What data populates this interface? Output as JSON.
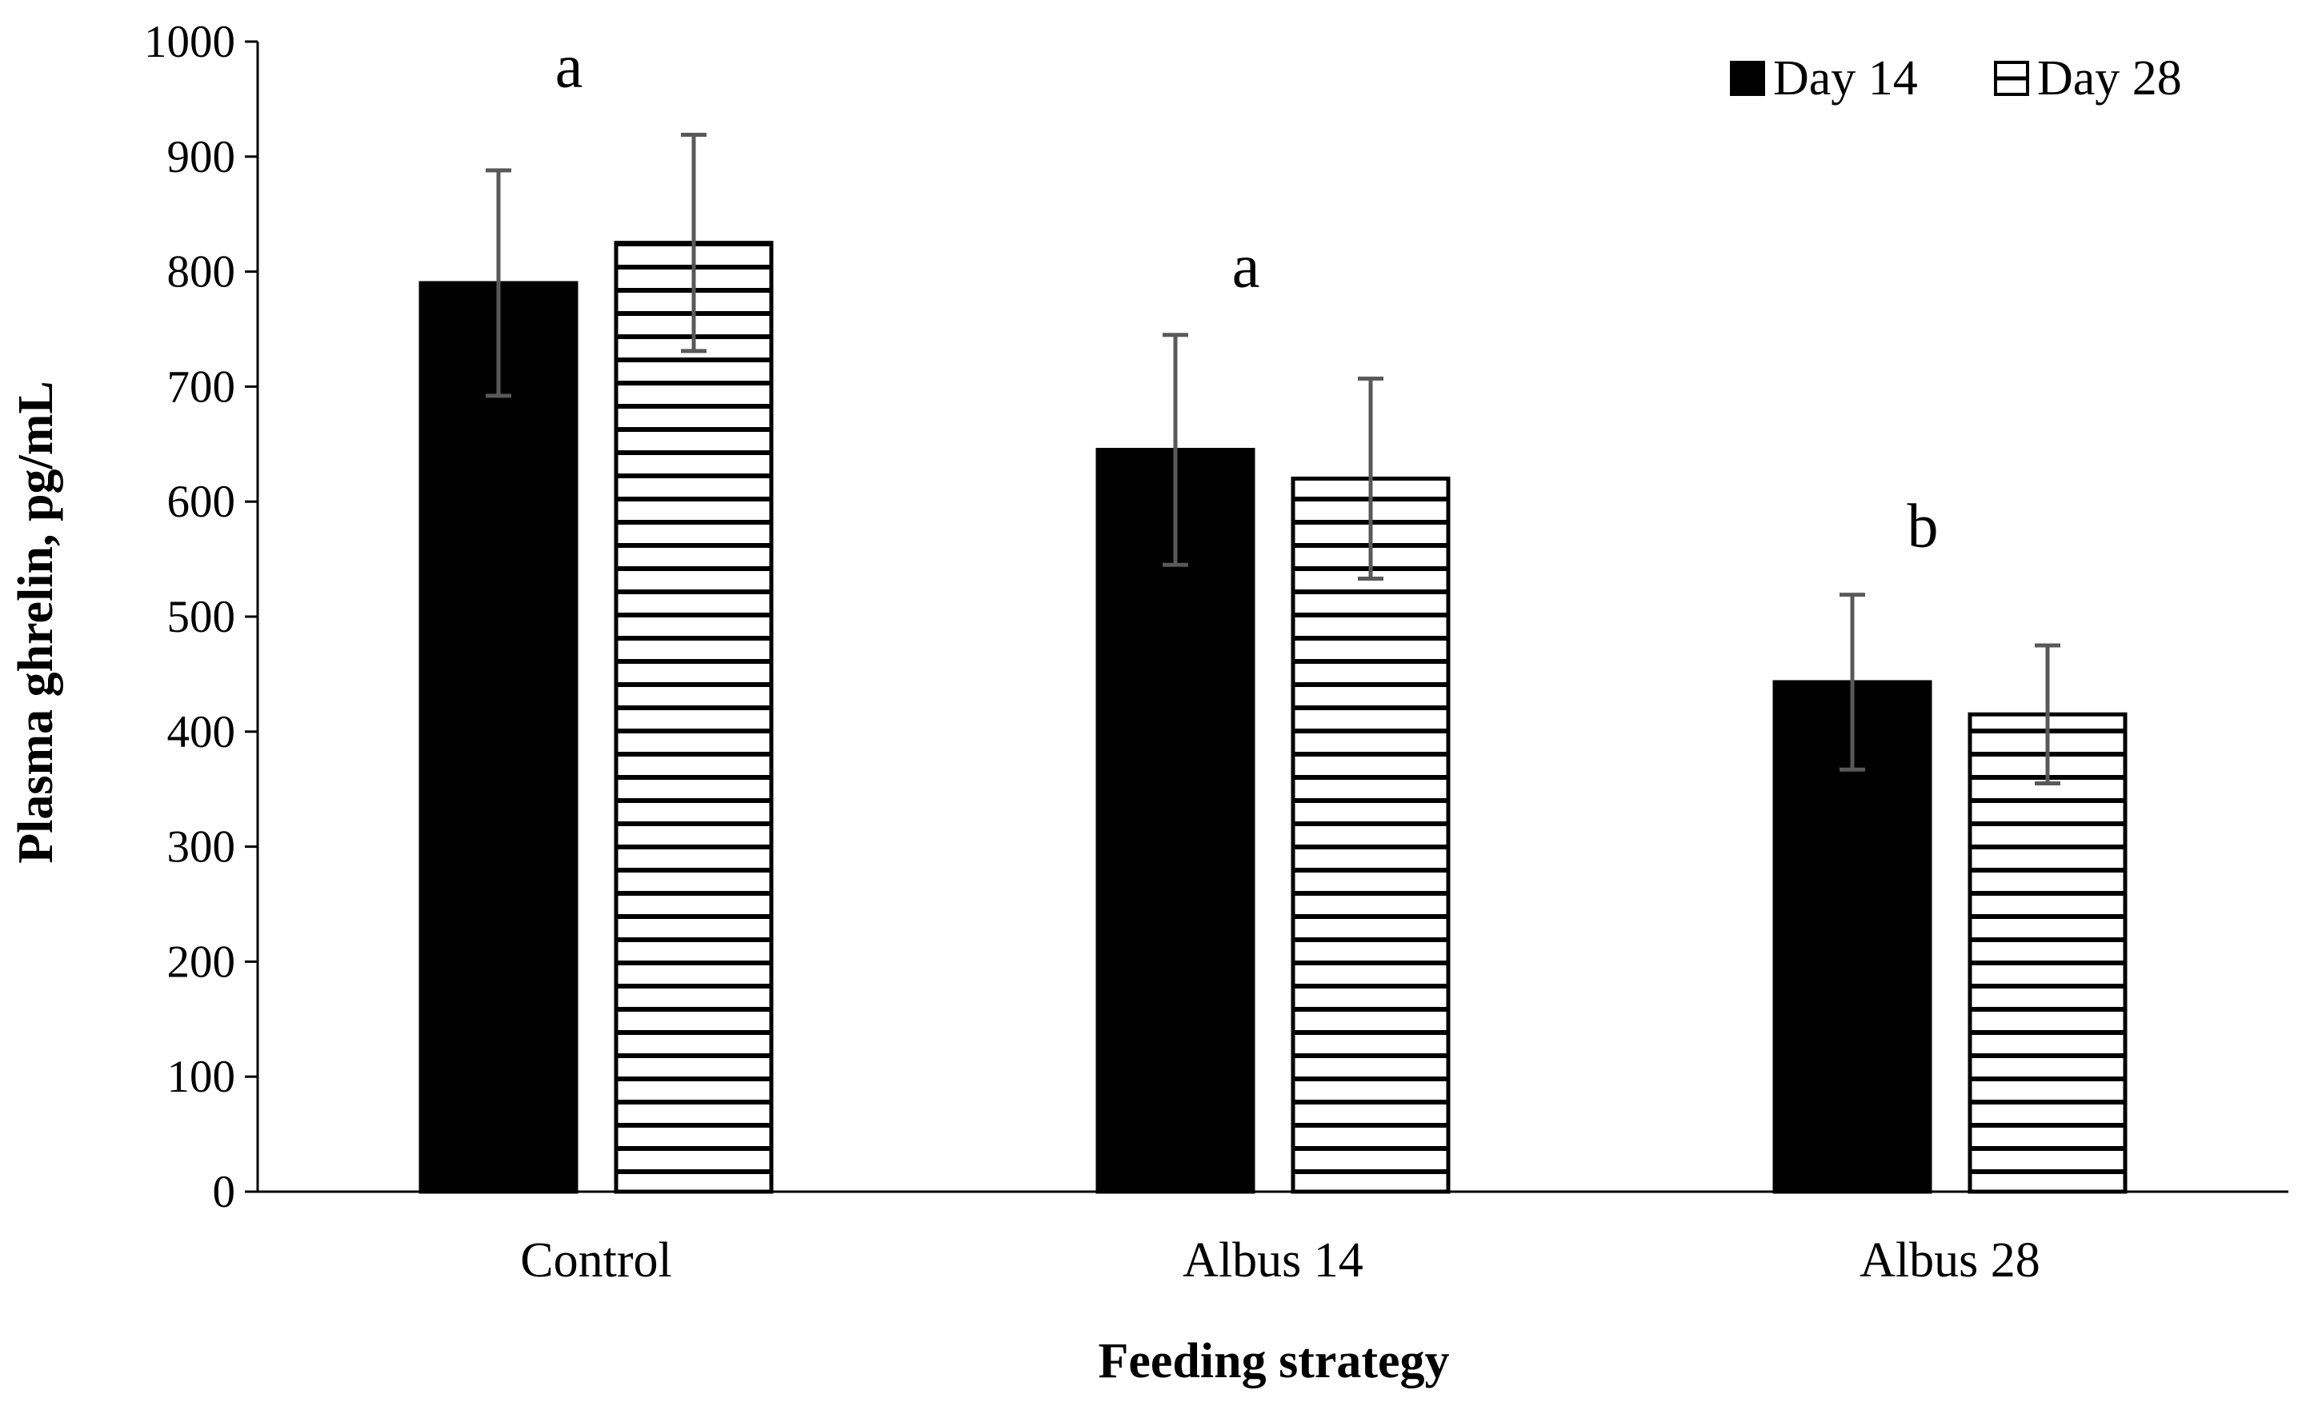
{
  "chart_data": {
    "type": "bar",
    "title": "",
    "xlabel": "Feeding strategy",
    "ylabel": "Plasma ghrelin, pg/mL",
    "ylim": [
      0,
      1000
    ],
    "yticks": [
      0,
      100,
      200,
      300,
      400,
      500,
      600,
      700,
      800,
      900,
      1000
    ],
    "grid": false,
    "legend_position": "top-right",
    "categories": [
      "Control",
      "Albus 14",
      "Albus 28"
    ],
    "series": [
      {
        "name": "Day 14",
        "pattern": "solid",
        "color": "#000000",
        "values": [
          790,
          645,
          443
        ],
        "error": [
          98,
          100,
          76
        ]
      },
      {
        "name": "Day 28",
        "pattern": "horizontal-stripes",
        "color": "#000000",
        "values": [
          825,
          620,
          415
        ],
        "error": [
          94,
          87,
          60
        ]
      }
    ],
    "significance_labels": [
      "a",
      "a",
      "b"
    ]
  }
}
